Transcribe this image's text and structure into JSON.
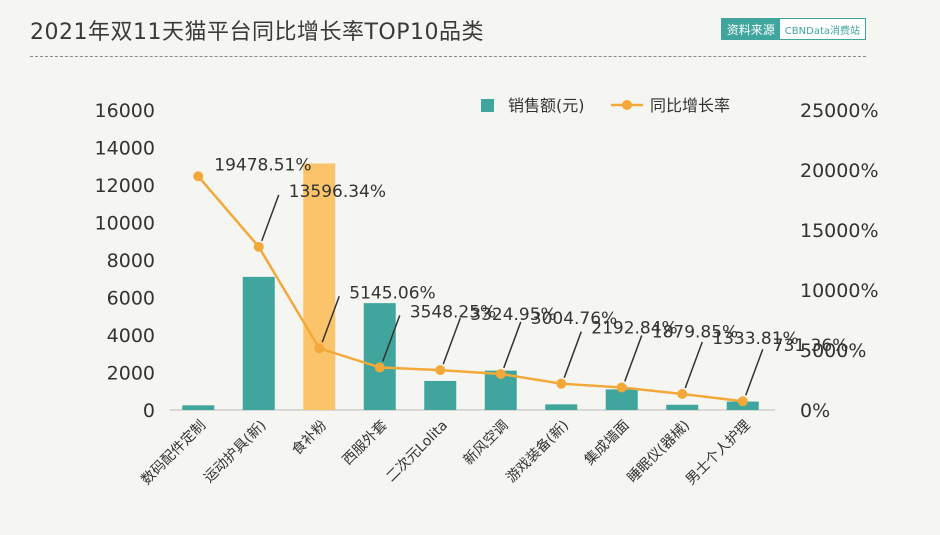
{
  "title": "2021年双11天猫平台同比增长率TOP10品类",
  "source": {
    "label": "资料来源",
    "name": "CBNData消费站"
  },
  "colors": {
    "bar": "#3fa59d",
    "bar_highlight": "#fbc46b",
    "line": "#f3a83a",
    "text": "#333333"
  },
  "chart_data": {
    "type": "bar",
    "categories": [
      "数码配件定制",
      "运动护具(新)",
      "食补粉",
      "西服外套",
      "二次元Lolita",
      "新风空调",
      "游戏装备(新)",
      "集成墙面",
      "睡眠仪(器械)",
      "男士个人护理"
    ],
    "series": [
      {
        "name": "销售额(元)",
        "type": "bar",
        "axis": "left",
        "values": [
          250,
          7100,
          13150,
          5700,
          1550,
          2100,
          300,
          1100,
          280,
          450
        ]
      },
      {
        "name": "同比增长率",
        "type": "line",
        "axis": "right",
        "values": [
          19478.51,
          13596.34,
          5145.06,
          3548.25,
          3324.95,
          3004.76,
          2192.84,
          1879.85,
          1333.81,
          731.36
        ],
        "labels": [
          "19478.51%",
          "13596.34%",
          "5145.06%",
          "3548.25%",
          "3324.95%",
          "3004.76%",
          "2192.84%",
          "1879.85%",
          "1333.81%",
          "731.36%"
        ]
      }
    ],
    "highlight_index": 2,
    "ylim_left": [
      0,
      16000
    ],
    "yticks_left": [
      "0",
      "2000",
      "4000",
      "6000",
      "8000",
      "10000",
      "12000",
      "14000",
      "16000"
    ],
    "ylim_right": [
      0,
      25000
    ],
    "yticks_right": [
      "0%",
      "5000%",
      "10000%",
      "15000%",
      "20000%",
      "25000%"
    ],
    "legend": "top-right",
    "grid": false
  }
}
